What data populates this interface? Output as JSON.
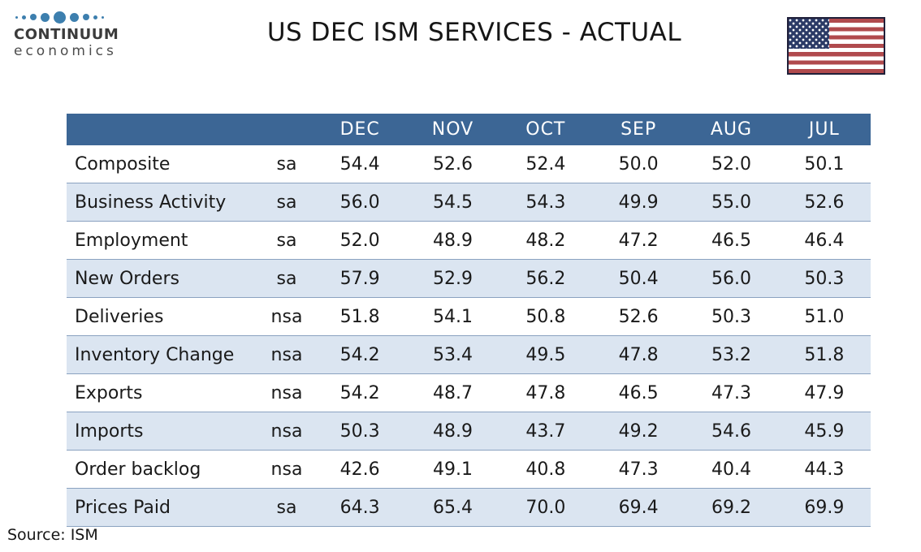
{
  "page": {
    "logo": {
      "line1": "CONTINUUM",
      "line2": "economics"
    },
    "title": "US DEC ISM SERVICES - ACTUAL",
    "source": "Source: ISM"
  },
  "chart_data": {
    "type": "table",
    "title": "US DEC ISM SERVICES - ACTUAL",
    "columns": [
      "DEC",
      "NOV",
      "OCT",
      "SEP",
      "AUG",
      "JUL"
    ],
    "rows": [
      {
        "label": "Composite",
        "adjustment": "sa",
        "values": [
          54.4,
          52.6,
          52.4,
          50.0,
          52.0,
          50.1
        ]
      },
      {
        "label": "Business Activity",
        "adjustment": "sa",
        "values": [
          56.0,
          54.5,
          54.3,
          49.9,
          55.0,
          52.6
        ]
      },
      {
        "label": "Employment",
        "adjustment": "sa",
        "values": [
          52.0,
          48.9,
          48.2,
          47.2,
          46.5,
          46.4
        ]
      },
      {
        "label": "New Orders",
        "adjustment": "sa",
        "values": [
          57.9,
          52.9,
          56.2,
          50.4,
          56.0,
          50.3
        ]
      },
      {
        "label": "Deliveries",
        "adjustment": "nsa",
        "values": [
          51.8,
          54.1,
          50.8,
          52.6,
          50.3,
          51.0
        ]
      },
      {
        "label": "Inventory Change",
        "adjustment": "nsa",
        "values": [
          54.2,
          53.4,
          49.5,
          47.8,
          53.2,
          51.8
        ]
      },
      {
        "label": "Exports",
        "adjustment": "nsa",
        "values": [
          54.2,
          48.7,
          47.8,
          46.5,
          47.3,
          47.9
        ]
      },
      {
        "label": "Imports",
        "adjustment": "nsa",
        "values": [
          50.3,
          48.9,
          43.7,
          49.2,
          54.6,
          45.9
        ]
      },
      {
        "label": "Order backlog",
        "adjustment": "nsa",
        "values": [
          42.6,
          49.1,
          40.8,
          47.3,
          40.4,
          44.3
        ]
      },
      {
        "label": "Prices Paid",
        "adjustment": "sa",
        "values": [
          64.3,
          65.4,
          70.0,
          69.4,
          69.2,
          69.9
        ]
      }
    ],
    "source": "ISM",
    "layout": {
      "striped": true,
      "header_position": "top"
    }
  },
  "colors": {
    "header_bg": "#3c6695",
    "row_alt_bg": "#dbe5f1",
    "row_border": "#8aa2c0",
    "flag_red": "#b04a4d",
    "flag_navy": "#2b3a66",
    "logo_blue": "#3d7fae"
  }
}
